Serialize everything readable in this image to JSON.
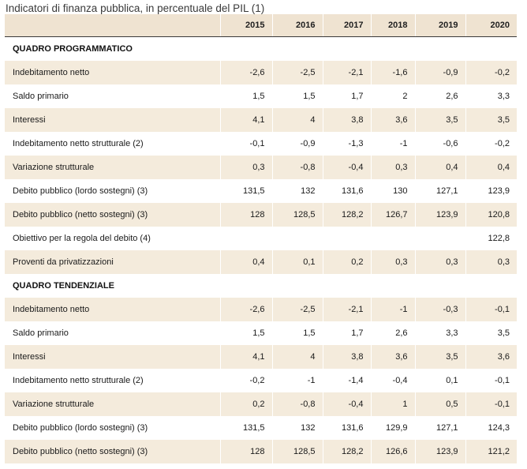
{
  "title": "Indicatori di finanza pubblica, in percentuale del PIL (1)",
  "table": {
    "header_blank": "",
    "years": [
      "2015",
      "2016",
      "2017",
      "2018",
      "2019",
      "2020"
    ],
    "sections": [
      {
        "heading": "QUADRO PROGRAMMATICO",
        "rows": [
          {
            "label": "Indebitamento netto",
            "values": [
              "-2,6",
              "-2,5",
              "-2,1",
              "-1,6",
              "-0,9",
              "-0,2"
            ]
          },
          {
            "label": "Saldo primario",
            "values": [
              "1,5",
              "1,5",
              "1,7",
              "2",
              "2,6",
              "3,3"
            ]
          },
          {
            "label": "Interessi",
            "values": [
              "4,1",
              "4",
              "3,8",
              "3,6",
              "3,5",
              "3,5"
            ]
          },
          {
            "label": "Indebitamento netto strutturale (2)",
            "values": [
              "-0,1",
              "-0,9",
              "-1,3",
              "-1",
              "-0,6",
              "-0,2"
            ]
          },
          {
            "label": "Variazione strutturale",
            "values": [
              "0,3",
              "-0,8",
              "-0,4",
              "0,3",
              "0,4",
              "0,4"
            ]
          },
          {
            "label": "Debito pubblico (lordo sostegni) (3)",
            "values": [
              "131,5",
              "132",
              "131,6",
              "130",
              "127,1",
              "123,9"
            ]
          },
          {
            "label": "Debito pubblico (netto sostegni) (3)",
            "values": [
              "128",
              "128,5",
              "128,2",
              "126,7",
              "123,9",
              "120,8"
            ]
          },
          {
            "label": "Obiettivo per la regola del debito (4)",
            "values": [
              "",
              "",
              "",
              "",
              "",
              "122,8"
            ]
          },
          {
            "label": "Proventi da privatizzazioni",
            "values": [
              "0,4",
              "0,1",
              "0,2",
              "0,3",
              "0,3",
              "0,3"
            ]
          }
        ]
      },
      {
        "heading": "QUADRO TENDENZIALE",
        "rows": [
          {
            "label": "Indebitamento netto",
            "values": [
              "-2,6",
              "-2,5",
              "-2,1",
              "-1",
              "-0,3",
              "-0,1"
            ]
          },
          {
            "label": "Saldo primario",
            "values": [
              "1,5",
              "1,5",
              "1,7",
              "2,6",
              "3,3",
              "3,5"
            ]
          },
          {
            "label": "Interessi",
            "values": [
              "4,1",
              "4",
              "3,8",
              "3,6",
              "3,5",
              "3,6"
            ]
          },
          {
            "label": "Indebitamento netto strutturale (2)",
            "values": [
              "-0,2",
              "-1",
              "-1,4",
              "-0,4",
              "0,1",
              "-0,1"
            ]
          },
          {
            "label": "Variazione strutturale",
            "values": [
              "0,2",
              "-0,8",
              "-0,4",
              "1",
              "0,5",
              "-0,1"
            ]
          },
          {
            "label": "Debito pubblico (lordo sostegni) (3)",
            "values": [
              "131,5",
              "132",
              "131,6",
              "129,9",
              "127,1",
              "124,3"
            ]
          },
          {
            "label": "Debito pubblico (netto sostegni) (3)",
            "values": [
              "128",
              "128,5",
              "128,2",
              "126,6",
              "123,9",
              "121,2"
            ]
          }
        ]
      }
    ]
  }
}
